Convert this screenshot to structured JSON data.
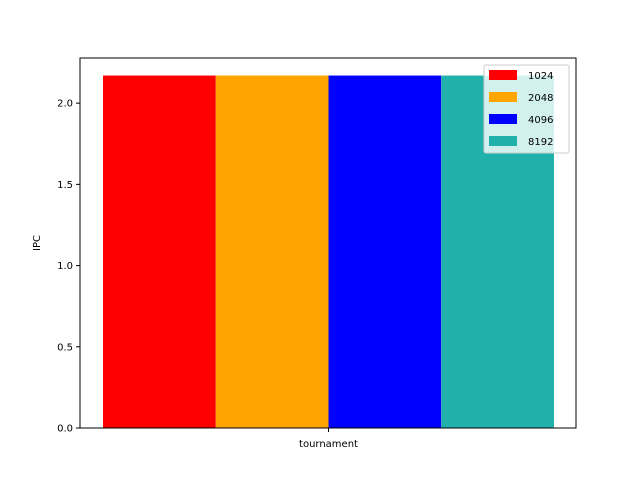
{
  "chart_data": {
    "type": "bar",
    "categories": [
      "tournament"
    ],
    "series": [
      {
        "name": "1024",
        "values": [
          2.17
        ],
        "color": "#ff0000"
      },
      {
        "name": "2048",
        "values": [
          2.17
        ],
        "color": "#ffa500"
      },
      {
        "name": "4096",
        "values": [
          2.17
        ],
        "color": "#0000ff"
      },
      {
        "name": "8192",
        "values": [
          2.17
        ],
        "color": "#20b2aa"
      }
    ],
    "title": "",
    "xlabel": "",
    "ylabel": "IPC",
    "ylim": [
      0,
      2.278
    ],
    "yticks": [
      "0.0",
      "0.5",
      "1.0",
      "1.5",
      "2.0"
    ],
    "grid": false,
    "legend": "top-right"
  }
}
